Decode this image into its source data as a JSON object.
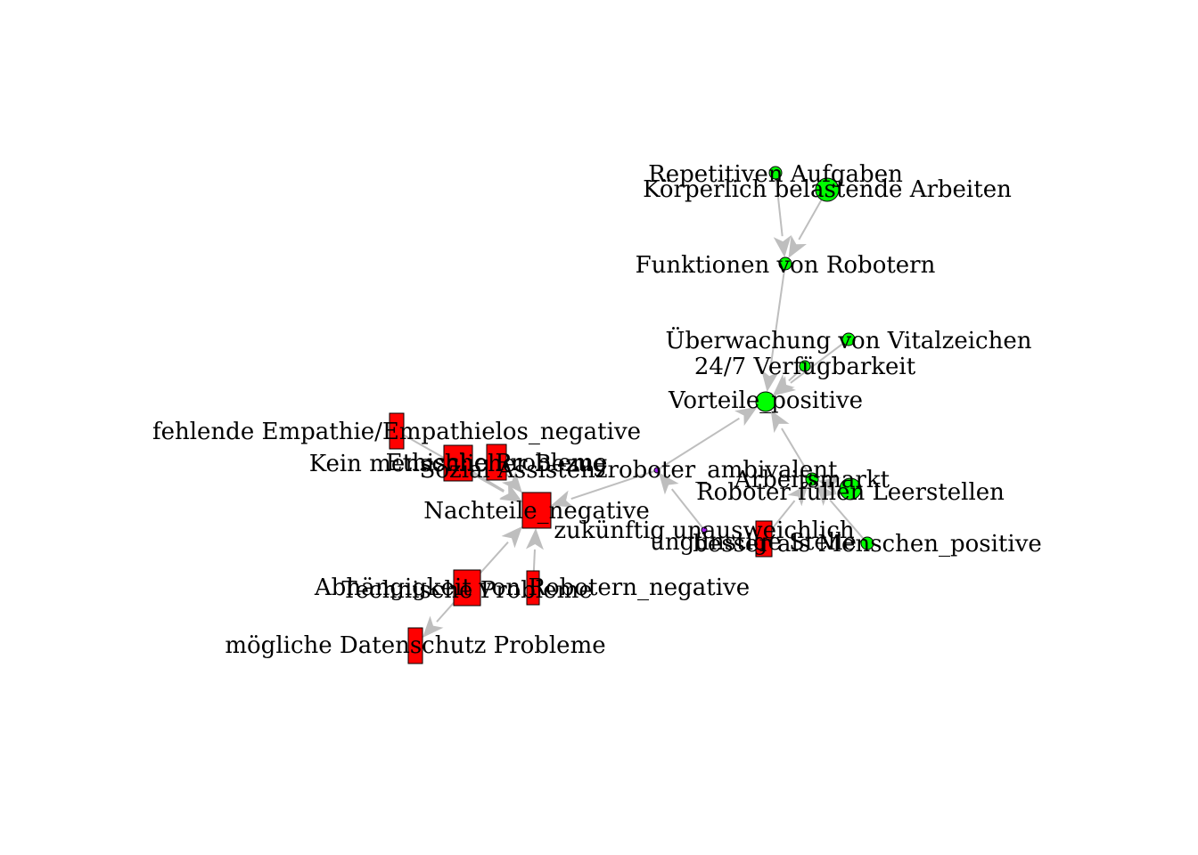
{
  "diagram": {
    "type": "network-graph",
    "colors": {
      "edge": "#bebebe",
      "positive": "#00ff00",
      "negative": "#ff0000",
      "ambivalent": "#a020f0",
      "outline": "#000000"
    },
    "nodes": [
      {
        "id": "repetitiv",
        "label": "Repetitiven Aufgaben",
        "group": "positive",
        "shape": "circle"
      },
      {
        "id": "koerperlich",
        "label": "Körperlich belastende Arbeiten",
        "group": "positive",
        "shape": "circle"
      },
      {
        "id": "funktionen",
        "label": "Funktionen von Robotern",
        "group": "positive",
        "shape": "circle"
      },
      {
        "id": "vitalzeichen",
        "label": "Überwachung von Vitalzeichen",
        "group": "positive",
        "shape": "circle"
      },
      {
        "id": "verfuegbarkeit",
        "label": "24/7 Verfügbarkeit",
        "group": "positive",
        "shape": "circle"
      },
      {
        "id": "vorteile",
        "label": "Vorteile_positive",
        "group": "positive",
        "shape": "circle"
      },
      {
        "id": "arbeitsmarkt",
        "label": "Arbeitsmarkt",
        "group": "positive",
        "shape": "circle"
      },
      {
        "id": "leerstellen",
        "label": "Roboter füllen Leerstellen",
        "group": "positive",
        "shape": "circle"
      },
      {
        "id": "besser",
        "label": "besser als Menschen_positive",
        "group": "positive",
        "shape": "circle"
      },
      {
        "id": "sozial",
        "label": "Sozial Assistenzroboter_ambivalent",
        "group": "ambivalent",
        "shape": "circle"
      },
      {
        "id": "zukuenftig",
        "label": "zukünftig unausweichlich",
        "group": "ambivalent",
        "shape": "circle"
      },
      {
        "id": "unguenstig",
        "label": "ungünstige Stelle",
        "group": "negative",
        "shape": "rect"
      },
      {
        "id": "empathie",
        "label": "fehlende Empathie/Empathielos_negative",
        "group": "negative",
        "shape": "rect"
      },
      {
        "id": "kein",
        "label": "Kein menschlicher Bezug",
        "group": "negative",
        "shape": "rect"
      },
      {
        "id": "ethisch",
        "label": "Ethische Probleme",
        "group": "negative",
        "shape": "rect"
      },
      {
        "id": "nachteile",
        "label": "Nachteile_negative",
        "group": "negative",
        "shape": "rect"
      },
      {
        "id": "abhaengigkeit",
        "label": "Abhängigkeit von Robotern_negative",
        "group": "negative",
        "shape": "rect"
      },
      {
        "id": "technisch",
        "label": "Technische Probleme",
        "group": "negative",
        "shape": "rect"
      },
      {
        "id": "datenschutz",
        "label": "mögliche Datenschutz Probleme",
        "group": "negative",
        "shape": "rect"
      }
    ],
    "edges": [
      {
        "from": "repetitiv",
        "to": "funktionen"
      },
      {
        "from": "koerperlich",
        "to": "funktionen"
      },
      {
        "from": "funktionen",
        "to": "vorteile"
      },
      {
        "from": "vitalzeichen",
        "to": "vorteile"
      },
      {
        "from": "verfuegbarkeit",
        "to": "vorteile"
      },
      {
        "from": "arbeitsmarkt",
        "to": "vorteile"
      },
      {
        "from": "leerstellen",
        "to": "arbeitsmarkt"
      },
      {
        "from": "besser",
        "to": "arbeitsmarkt"
      },
      {
        "from": "unguenstig",
        "to": "arbeitsmarkt"
      },
      {
        "from": "sozial",
        "to": "vorteile"
      },
      {
        "from": "sozial",
        "to": "nachteile"
      },
      {
        "from": "zukuenftig",
        "to": "sozial"
      },
      {
        "from": "empathie",
        "to": "nachteile"
      },
      {
        "from": "kein",
        "to": "nachteile"
      },
      {
        "from": "ethisch",
        "to": "nachteile"
      },
      {
        "from": "abhaengigkeit",
        "to": "nachteile"
      },
      {
        "from": "technisch",
        "to": "nachteile"
      },
      {
        "from": "abhaengigkeit",
        "to": "datenschutz"
      }
    ]
  }
}
